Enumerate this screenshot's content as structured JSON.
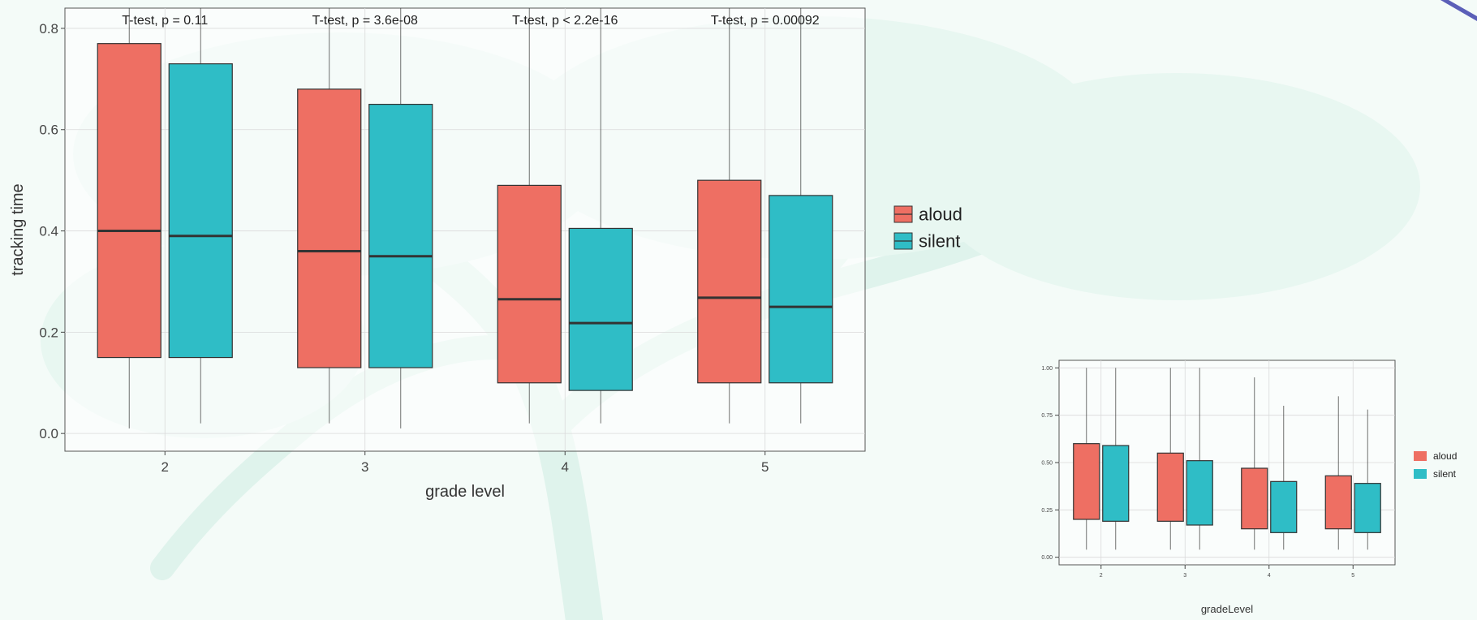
{
  "colors": {
    "aloud": "#ee6f63",
    "silent": "#2fbdc6",
    "box_stroke": "#333333",
    "axis_text": "#444444",
    "panel_border": "#555555",
    "grid": "#dadada"
  },
  "chart_data": [
    {
      "type": "box",
      "categories": [
        "2",
        "3",
        "4",
        "5"
      ],
      "xlabel": "grade level",
      "ylabel": "tracking time",
      "ylim": [
        -0.035,
        0.84
      ],
      "yticks": [
        0.0,
        0.2,
        0.4,
        0.6,
        0.8
      ],
      "ytick_labels": [
        "0.0",
        "0.2",
        "0.4",
        "0.6",
        "0.8"
      ],
      "grid": true,
      "legend_position": "right",
      "legend": [
        "aloud",
        "silent"
      ],
      "series": [
        {
          "name": "aloud",
          "boxes": [
            {
              "whisker_low": 0.01,
              "q1": 0.15,
              "median": 0.4,
              "q3": 0.77,
              "whisker_high": 0.84
            },
            {
              "whisker_low": 0.02,
              "q1": 0.13,
              "median": 0.36,
              "q3": 0.68,
              "whisker_high": 0.84
            },
            {
              "whisker_low": 0.02,
              "q1": 0.1,
              "median": 0.265,
              "q3": 0.49,
              "whisker_high": 0.84
            },
            {
              "whisker_low": 0.02,
              "q1": 0.1,
              "median": 0.268,
              "q3": 0.5,
              "whisker_high": 0.84
            }
          ]
        },
        {
          "name": "silent",
          "boxes": [
            {
              "whisker_low": 0.02,
              "q1": 0.15,
              "median": 0.39,
              "q3": 0.73,
              "whisker_high": 0.84
            },
            {
              "whisker_low": 0.01,
              "q1": 0.13,
              "median": 0.35,
              "q3": 0.65,
              "whisker_high": 0.84
            },
            {
              "whisker_low": 0.02,
              "q1": 0.085,
              "median": 0.218,
              "q3": 0.405,
              "whisker_high": 0.84
            },
            {
              "whisker_low": 0.02,
              "q1": 0.1,
              "median": 0.25,
              "q3": 0.47,
              "whisker_high": 0.84
            }
          ]
        }
      ],
      "annotations": [
        "T-test, p = 0.11",
        "T-test, p = 3.6e-08",
        "T-test, p < 2.2e-16",
        "T-test, p = 0.00092"
      ]
    },
    {
      "type": "box",
      "categories": [
        "2",
        "3",
        "4",
        "5"
      ],
      "xlabel": "gradeLevel",
      "ylabel": "",
      "ylim": [
        -0.04,
        1.04
      ],
      "yticks": [
        0.0,
        0.25,
        0.5,
        0.75,
        1.0
      ],
      "ytick_labels": [
        "0.00",
        "0.25",
        "0.50",
        "0.75",
        "1.00"
      ],
      "grid": true,
      "legend_position": "right",
      "legend": [
        "aloud",
        "silent"
      ],
      "series": [
        {
          "name": "aloud",
          "boxes": [
            {
              "whisker_low": 0.04,
              "q1": 0.2,
              "median": 0.2,
              "q3": 0.6,
              "whisker_high": 1.0
            },
            {
              "whisker_low": 0.04,
              "q1": 0.19,
              "median": 0.19,
              "q3": 0.55,
              "whisker_high": 1.0
            },
            {
              "whisker_low": 0.04,
              "q1": 0.15,
              "median": 0.15,
              "q3": 0.47,
              "whisker_high": 0.95
            },
            {
              "whisker_low": 0.04,
              "q1": 0.15,
              "median": 0.15,
              "q3": 0.43,
              "whisker_high": 0.85
            }
          ]
        },
        {
          "name": "silent",
          "boxes": [
            {
              "whisker_low": 0.04,
              "q1": 0.19,
              "median": 0.19,
              "q3": 0.59,
              "whisker_high": 1.0
            },
            {
              "whisker_low": 0.04,
              "q1": 0.17,
              "median": 0.17,
              "q3": 0.51,
              "whisker_high": 1.0
            },
            {
              "whisker_low": 0.04,
              "q1": 0.13,
              "median": 0.13,
              "q3": 0.4,
              "whisker_high": 0.8
            },
            {
              "whisker_low": 0.04,
              "q1": 0.13,
              "median": 0.13,
              "q3": 0.39,
              "whisker_high": 0.78
            }
          ]
        }
      ]
    }
  ]
}
